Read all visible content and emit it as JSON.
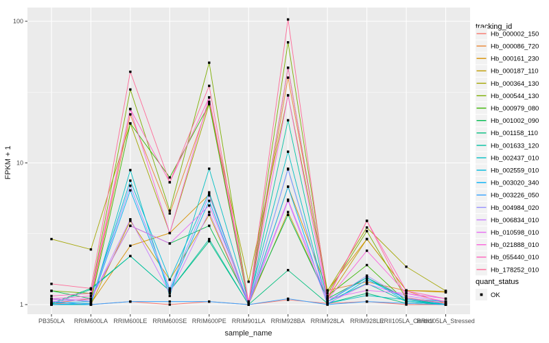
{
  "figure": {
    "background": "#FFFFFF",
    "panel_bg": "#EBEBEB",
    "grid_color": "#FFFFFF",
    "legend_key_bg": "#F2F2F2",
    "point_color": "#000000",
    "tick_color": "#333333",
    "tick_text_color": "#4D4D4D"
  },
  "chart_data": {
    "type": "line",
    "title": "",
    "xlabel": "sample_name",
    "ylabel": "FPKM + 1",
    "y_scale": "log10",
    "y_ticks": [
      1,
      10,
      100
    ],
    "y_tick_labels": [
      "1",
      "10",
      "100"
    ],
    "y_minor": [
      3.1623,
      31.623
    ],
    "ylim": [
      0.86,
      125
    ],
    "legend_position": "right",
    "grid": "on",
    "point_shape": "filled-square",
    "legend_title": "tracking_id",
    "legend2_title": "quant_status",
    "legend2_items": [
      "OK"
    ],
    "categories": [
      "PB350LA",
      "RRIM600LA",
      "RRIM600LE",
      "RRIM600SE",
      "RRIM600PE",
      "RRIM901LA",
      "RRIM928BA",
      "RRIM928LA",
      "RRIM928LE",
      "RRII105LA_Control",
      "RRII105LA_Stressed"
    ],
    "series": [
      {
        "name": "Hb_000002_150",
        "color": "#F8766D",
        "values": [
          1.02,
          1.0,
          1.05,
          1.0,
          1.05,
          1.0,
          1.08,
          1.02,
          1.05,
          1.0,
          1.0
        ]
      },
      {
        "name": "Hb_000086_720",
        "color": "#EA8331",
        "values": [
          1.02,
          1.1,
          22.0,
          4.4,
          27.0,
          1.02,
          40.0,
          1.26,
          1.45,
          1.25,
          1.02
        ]
      },
      {
        "name": "Hb_000161_230",
        "color": "#D89000",
        "values": [
          1.0,
          1.02,
          2.6,
          3.2,
          6.0,
          1.0,
          6.8,
          1.26,
          2.9,
          1.26,
          1.22
        ]
      },
      {
        "name": "Hb_000187_110",
        "color": "#C09B00",
        "values": [
          1.0,
          1.0,
          3.9,
          1.5,
          4.3,
          1.0,
          4.5,
          1.1,
          2.9,
          1.26,
          1.24
        ]
      },
      {
        "name": "Hb_000364_130",
        "color": "#A3A500",
        "values": [
          2.9,
          2.45,
          19.0,
          3.2,
          26.0,
          1.45,
          30.0,
          1.25,
          3.5,
          1.85,
          1.25
        ]
      },
      {
        "name": "Hb_000544_130",
        "color": "#7CAE00",
        "values": [
          1.25,
          1.2,
          33.0,
          4.6,
          51.0,
          1.02,
          71.0,
          1.2,
          3.3,
          1.1,
          1.05
        ]
      },
      {
        "name": "Hb_000979_080",
        "color": "#39B600",
        "values": [
          1.1,
          1.05,
          19.0,
          7.9,
          26.0,
          1.0,
          47.0,
          1.15,
          1.9,
          1.05,
          1.0
        ]
      },
      {
        "name": "Hb_001002_090",
        "color": "#00BB4E",
        "values": [
          1.25,
          1.1,
          3.6,
          2.7,
          3.6,
          1.05,
          4.3,
          1.1,
          1.55,
          1.1,
          1.0
        ]
      },
      {
        "name": "Hb_001158_110",
        "color": "#00BF7D",
        "values": [
          1.02,
          1.3,
          2.2,
          1.25,
          2.8,
          1.0,
          1.75,
          1.02,
          1.2,
          1.02,
          1.0
        ]
      },
      {
        "name": "Hb_001633_120",
        "color": "#00C1A3",
        "values": [
          1.0,
          1.28,
          2.2,
          1.25,
          2.9,
          1.0,
          20.0,
          1.05,
          1.41,
          1.05,
          1.0
        ]
      },
      {
        "name": "Hb_002437_010",
        "color": "#00BFC4",
        "values": [
          1.0,
          1.0,
          8.9,
          1.15,
          9.1,
          1.05,
          12.0,
          1.02,
          1.16,
          1.08,
          1.0
        ]
      },
      {
        "name": "Hb_002559_010",
        "color": "#00BADE",
        "values": [
          1.02,
          1.05,
          7.5,
          1.5,
          6.2,
          1.0,
          9.1,
          1.05,
          1.55,
          1.05,
          1.02
        ]
      },
      {
        "name": "Hb_003020_340",
        "color": "#00B0F6",
        "values": [
          1.0,
          1.02,
          6.4,
          1.25,
          5.4,
          1.0,
          6.8,
          1.0,
          1.5,
          1.1,
          1.05
        ]
      },
      {
        "name": "Hb_003226_050",
        "color": "#35A2FF",
        "values": [
          1.05,
          1.0,
          1.05,
          1.05,
          1.05,
          1.0,
          1.1,
          1.0,
          1.05,
          1.02,
          1.0
        ]
      },
      {
        "name": "Hb_004984_020",
        "color": "#9590FF",
        "values": [
          1.1,
          1.05,
          6.9,
          1.3,
          5.9,
          1.02,
          9.0,
          1.05,
          1.6,
          1.1,
          1.02
        ]
      },
      {
        "name": "Hb_006834_010",
        "color": "#C77CFF",
        "values": [
          1.05,
          1.08,
          4.0,
          1.2,
          4.5,
          1.0,
          5.4,
          1.02,
          1.4,
          1.15,
          1.05
        ]
      },
      {
        "name": "Hb_010598_010",
        "color": "#E76BF3",
        "values": [
          1.08,
          1.1,
          3.6,
          2.7,
          5.0,
          1.05,
          5.5,
          1.1,
          1.26,
          1.2,
          1.1
        ]
      },
      {
        "name": "Hb_021888_010",
        "color": "#FA62DB",
        "values": [
          1.1,
          1.15,
          24.0,
          3.2,
          29.0,
          1.02,
          30.0,
          1.08,
          2.4,
          1.2,
          1.05
        ]
      },
      {
        "name": "Hb_055440_010",
        "color": "#FF62BC",
        "values": [
          1.15,
          1.2,
          24.0,
          7.3,
          29.0,
          1.05,
          47.0,
          1.12,
          3.9,
          1.25,
          1.1
        ]
      },
      {
        "name": "Hb_178252_010",
        "color": "#FF6A98",
        "values": [
          1.4,
          1.3,
          44.0,
          7.3,
          35.0,
          1.02,
          103.0,
          1.1,
          3.9,
          1.12,
          1.02
        ]
      }
    ]
  }
}
